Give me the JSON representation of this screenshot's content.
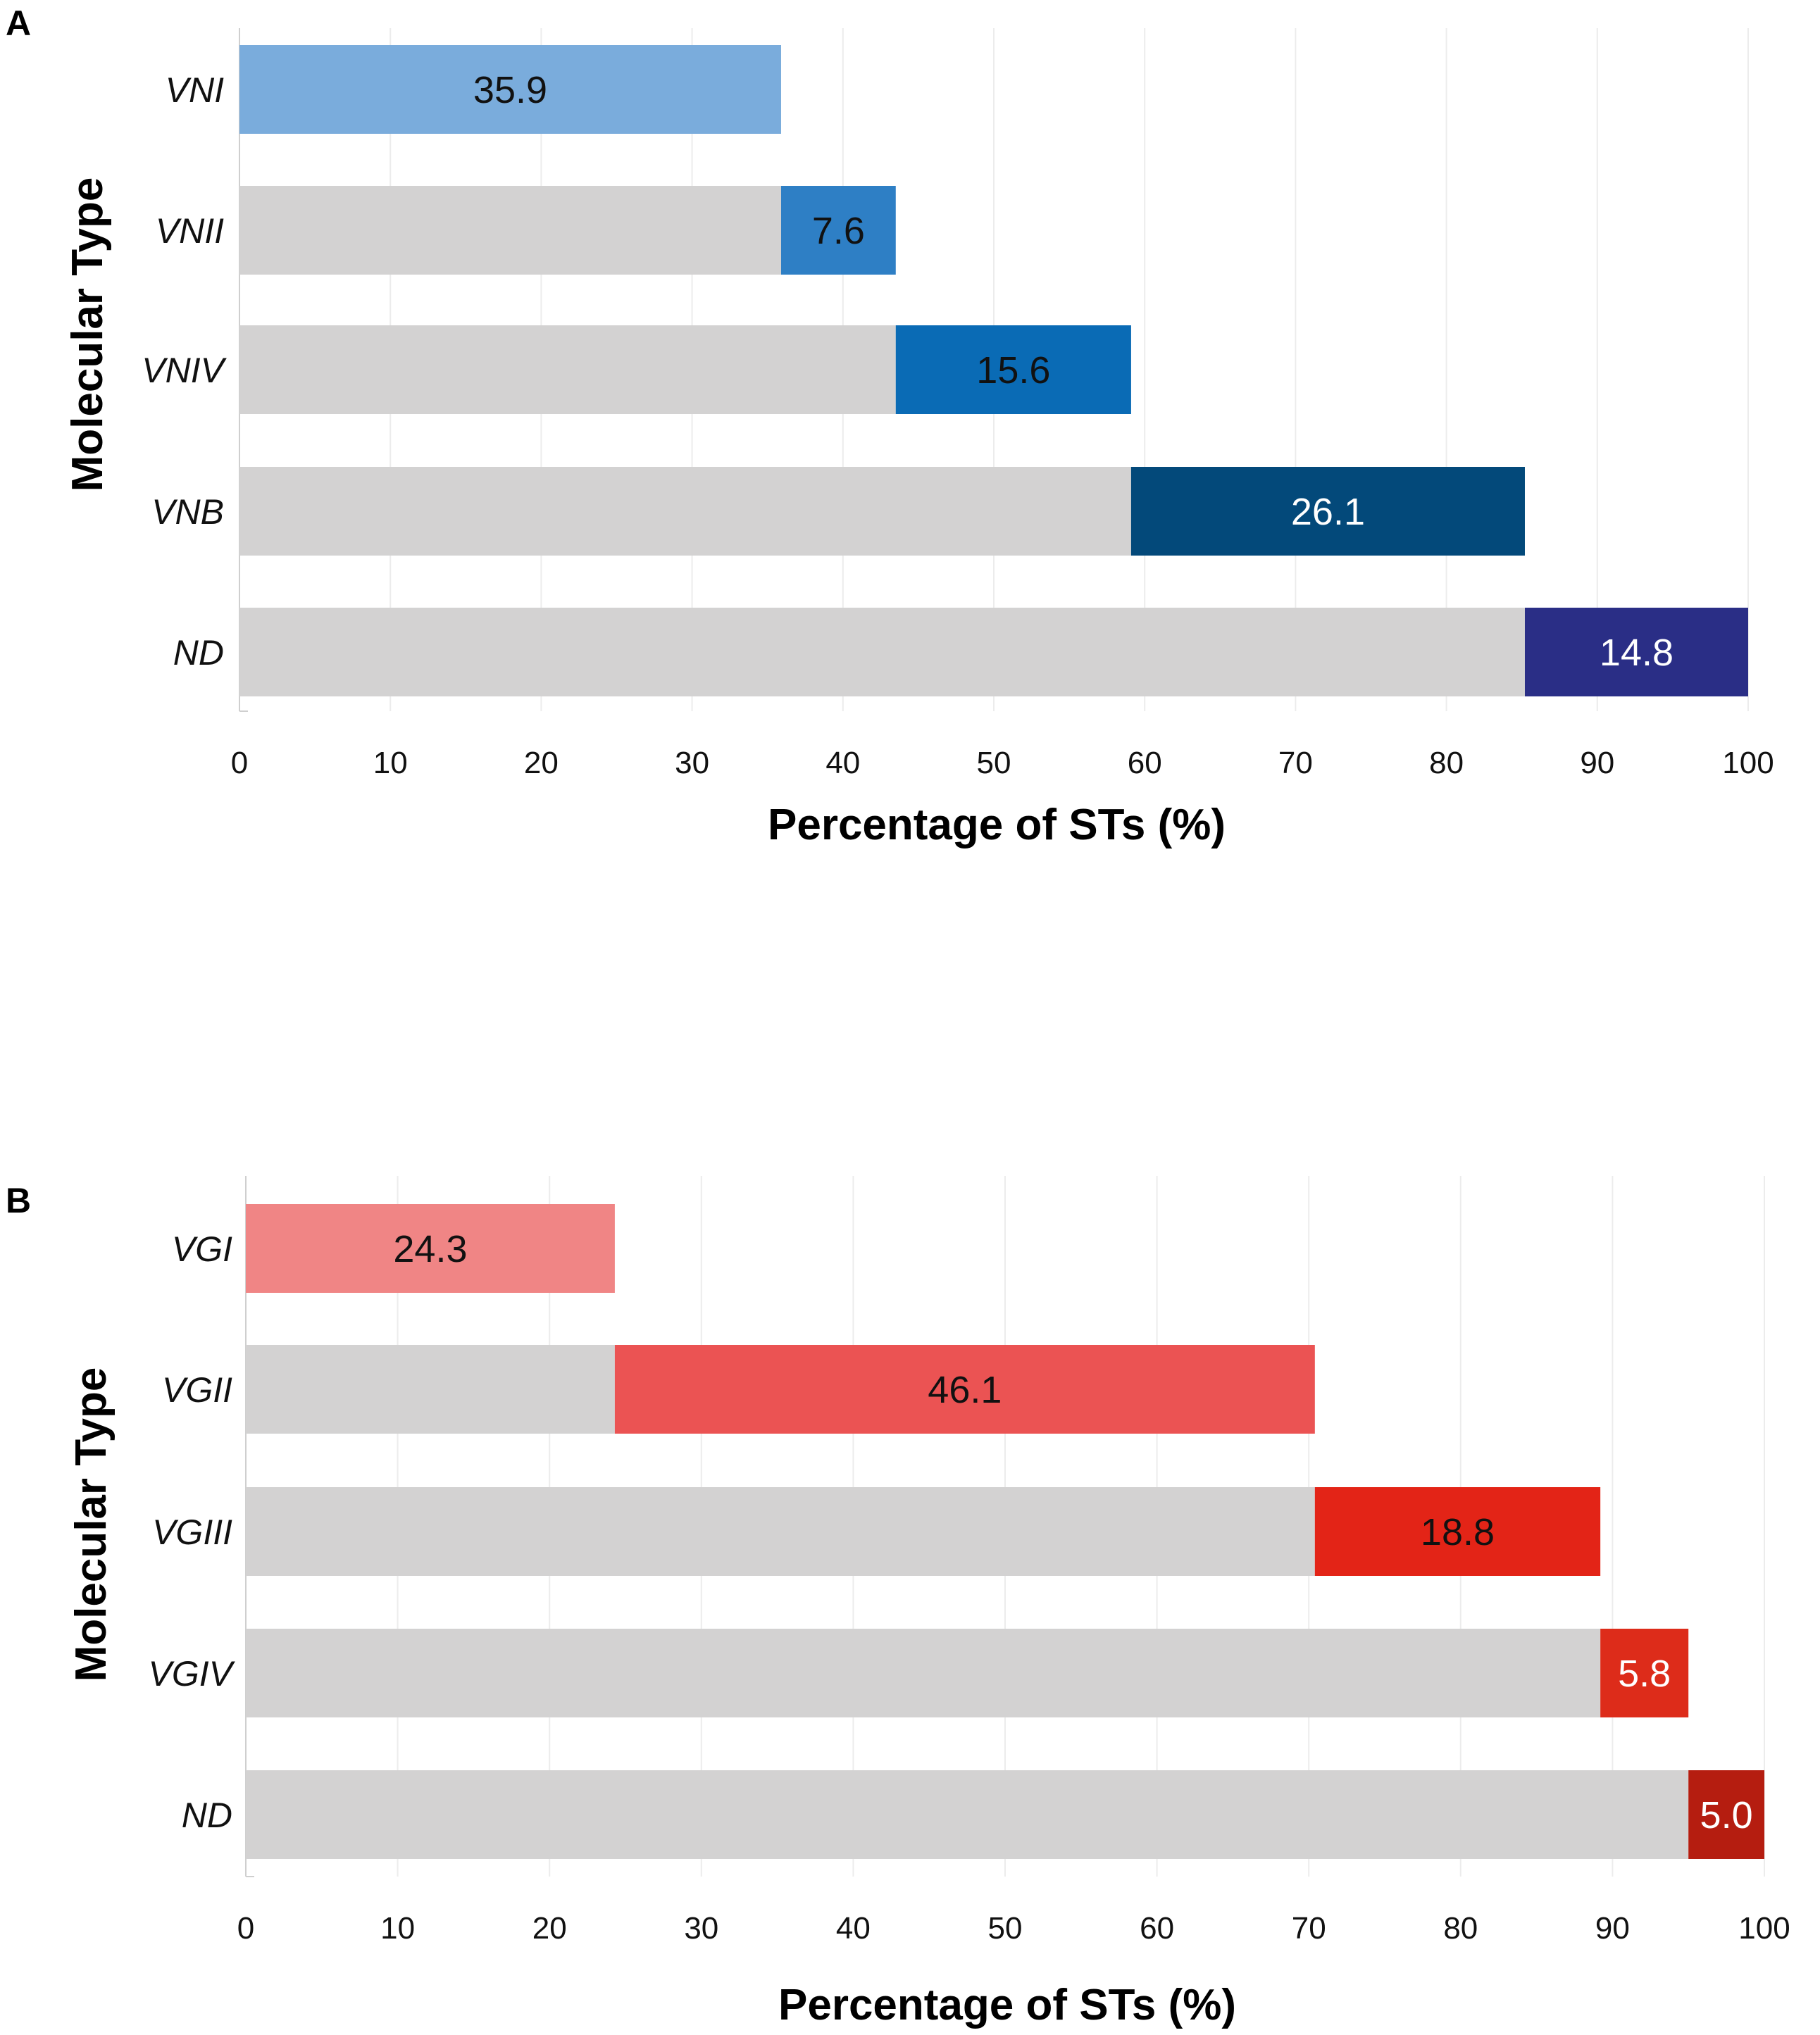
{
  "chart_data": [
    {
      "panel": "A",
      "type": "bar",
      "orientation": "horizontal",
      "stacked": true,
      "categories": [
        "VNI",
        "VNII",
        "VNIV",
        "VNB",
        "ND"
      ],
      "series": [
        {
          "name": "cumulative offset",
          "color": "#d3d2d2",
          "values": [
            0,
            35.9,
            43.5,
            59.1,
            85.2
          ]
        },
        {
          "name": "percentage",
          "values": [
            35.9,
            7.6,
            15.6,
            26.1,
            14.8
          ],
          "labels": [
            "35.9",
            "7.6",
            "15.6",
            "26.1",
            "14.8"
          ],
          "colors": [
            "#7aacdc",
            "#2e7fc5",
            "#0a6bb5",
            "#03497a",
            "#2a2e86"
          ],
          "label_colors": [
            "#111111",
            "#111111",
            "#111111",
            "#ffffff",
            "#ffffff"
          ]
        }
      ],
      "xlabel": "Percentage of STs (%)",
      "ylabel": "Molecular Type",
      "xlim": [
        0,
        100
      ],
      "xticks": [
        "0",
        "10",
        "20",
        "30",
        "40",
        "50",
        "60",
        "70",
        "80",
        "90",
        "100"
      ]
    },
    {
      "panel": "B",
      "type": "bar",
      "orientation": "horizontal",
      "stacked": true,
      "categories": [
        "VGI",
        "VGII",
        "VGIII",
        "VGIV",
        "ND"
      ],
      "series": [
        {
          "name": "cumulative offset",
          "color": "#d3d2d2",
          "values": [
            0,
            24.3,
            70.4,
            89.2,
            95.0
          ]
        },
        {
          "name": "percentage",
          "values": [
            24.3,
            46.1,
            18.8,
            5.8,
            5.0
          ],
          "labels": [
            "24.3",
            "46.1",
            "18.8",
            "5.8",
            "5.0"
          ],
          "colors": [
            "#f08585",
            "#eb5353",
            "#e32417",
            "#dd2c1a",
            "#b51d10"
          ],
          "label_colors": [
            "#111111",
            "#111111",
            "#111111",
            "#ffffff",
            "#ffffff"
          ]
        }
      ],
      "xlabel": "Percentage of STs (%)",
      "ylabel": "Molecular Type",
      "xlim": [
        0,
        100
      ],
      "xticks": [
        "0",
        "10",
        "20",
        "30",
        "40",
        "50",
        "60",
        "70",
        "80",
        "90",
        "100"
      ]
    }
  ]
}
